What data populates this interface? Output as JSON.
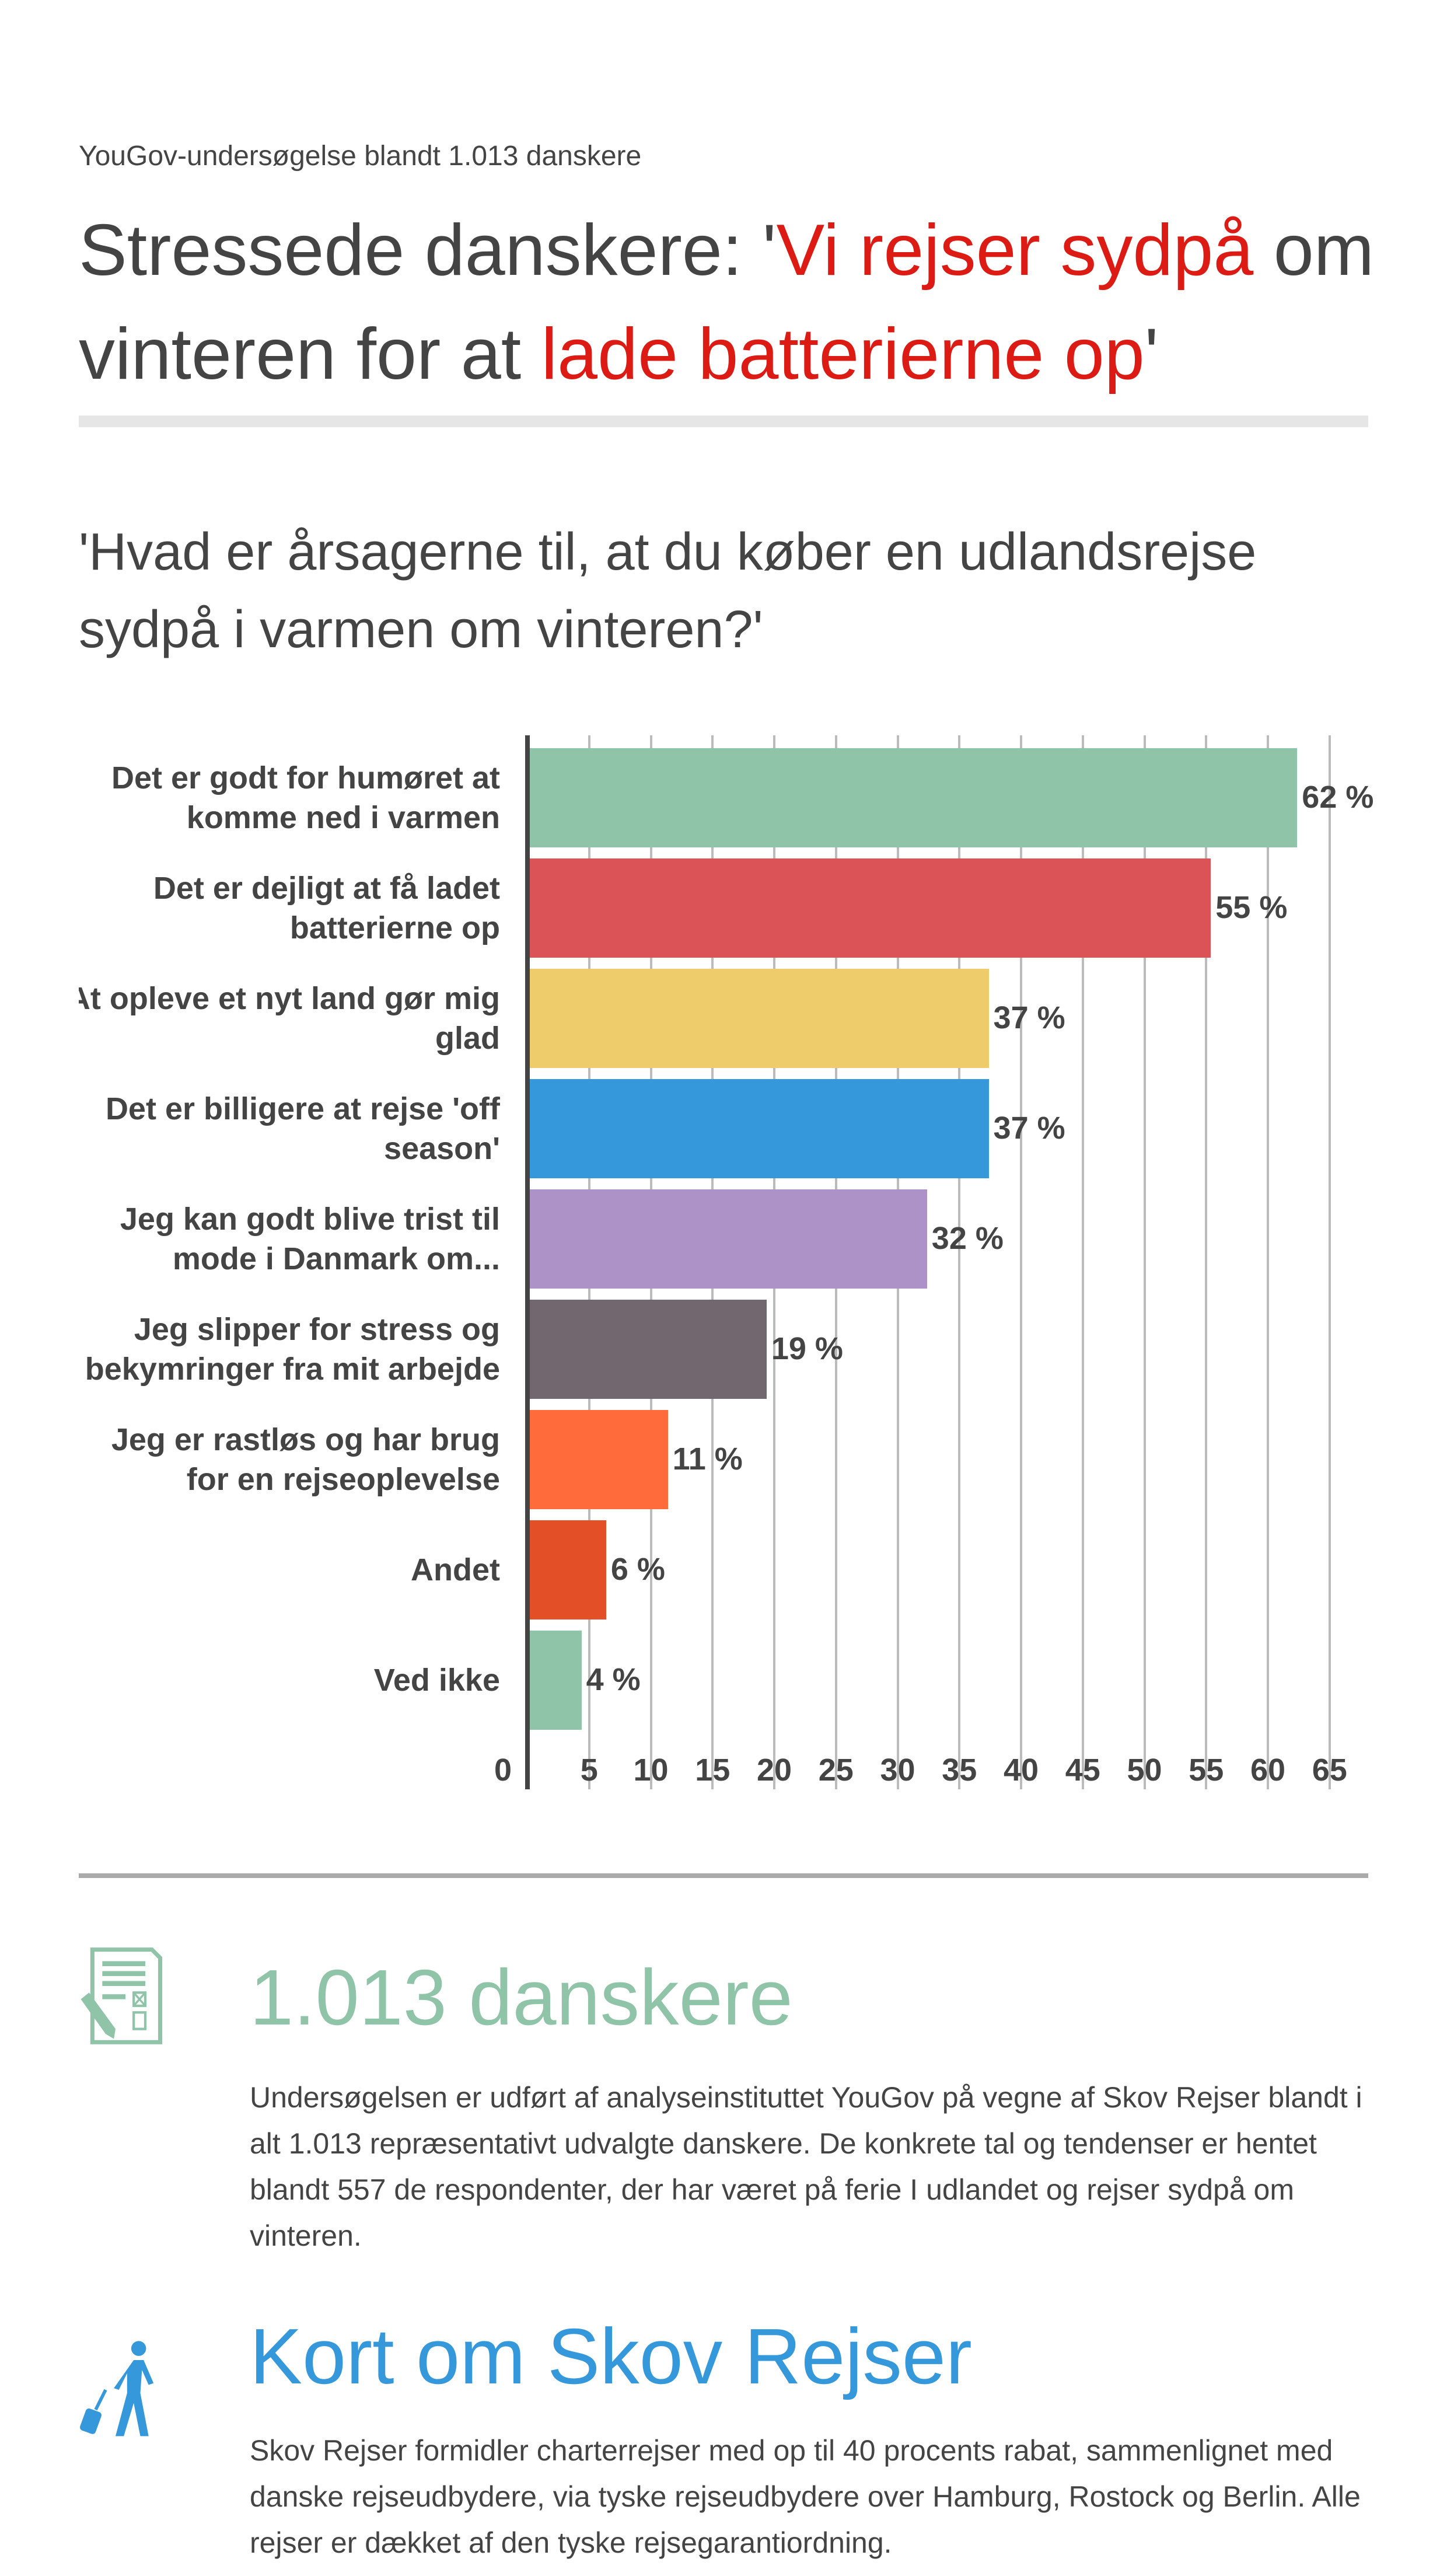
{
  "header": {
    "subtitle": "YouGov-undersøgelse blandt 1.013 danskere",
    "title_parts": [
      "Stressede danskere: '",
      "Vi rejser sydpå",
      " om vinteren for at ",
      "lade batterierne op",
      "'"
    ],
    "accent_color": "#dc1c14"
  },
  "question": "'Hvad er årsagerne til, at du køber en udlandsrejse sydpå i varmen om vinteren?'",
  "chart_data": {
    "type": "bar",
    "orientation": "horizontal",
    "categories": [
      [
        "Det er godt for humøret at",
        "komme ned i varmen"
      ],
      [
        "Det er dejligt at få ladet",
        "batterierne op"
      ],
      [
        "At opleve et nyt land gør mig",
        "glad"
      ],
      [
        "Det er billigere at rejse 'off",
        "season'"
      ],
      [
        "Jeg kan godt blive trist til",
        "mode i Danmark om..."
      ],
      [
        "Jeg slipper for stress og",
        "bekymringer fra mit arbejde"
      ],
      [
        "Jeg er rastløs og har brug",
        "for en rejseoplevelse"
      ],
      [
        "Andet"
      ],
      [
        "Ved ikke"
      ]
    ],
    "values": [
      62,
      55,
      37,
      37,
      32,
      19,
      11,
      6,
      4
    ],
    "value_labels": [
      "62 %",
      "55 %",
      "37 %",
      "37 %",
      "32 %",
      "19 %",
      "11 %",
      "6 %",
      "4 %"
    ],
    "colors": [
      "#8fc4a9",
      "#dc5357",
      "#eecb6b",
      "#3598db",
      "#ac92c6",
      "#72666f",
      "#ff6b3a",
      "#e34f26",
      "#8fc4a9"
    ],
    "xlim": [
      0,
      65
    ],
    "ticks": [
      "0",
      "5",
      "10",
      "15",
      "20",
      "25",
      "30",
      "35",
      "40",
      "45",
      "50",
      "55",
      "60",
      "65"
    ],
    "grid": true
  },
  "survey": {
    "heading": "1.013 danskere",
    "color": "#8fc4a9",
    "icon": "survey-form-pencil-icon",
    "text": "Undersøgelsen er udført af analyseinstituttet YouGov på vegne af Skov Rejser blandt i alt 1.013 repræsentativt udvalgte danskere. De konkrete tal og tendenser er hentet blandt 557 de respondenter, der har været på ferie I udlandet og rejser sydpå om vinteren."
  },
  "about": {
    "heading": "Kort om Skov Rejser",
    "color": "#3598db",
    "icon": "traveler-with-suitcase-icon",
    "text": "Skov Rejser formidler charterrejser med op til 40 procents rabat, sammenlignet med danske rejseudbydere, via tyske rejseudbydere over Hamburg, Rostock og Berlin. Alle rejser er dækket af den tyske rejsegarantiordning."
  }
}
